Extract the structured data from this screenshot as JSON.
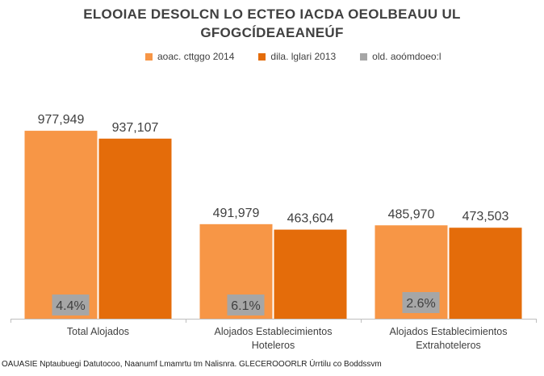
{
  "chart_data": {
    "type": "bar",
    "title": "ELOOIAE DESOLCN LO ECTEO IACDA OEOLBEAUU UL GFOGCÍDEAEANEÚF",
    "categories": [
      "Total Alojados",
      "Alojados Establecimientos Hoteleros",
      "Alojados Establecimientos Extrahoteleros"
    ],
    "category_lines": [
      [
        "Total Alojados"
      ],
      [
        "Alojados Establecimientos",
        "Hoteleros"
      ],
      [
        "Alojados Establecimientos",
        "Extrahoteleros"
      ]
    ],
    "series": [
      {
        "name": "aoac. cttggo 2014",
        "color": "#F79646",
        "values": [
          977949,
          491979,
          485970
        ],
        "labels": [
          "977,949",
          "491,979",
          "485,970"
        ]
      },
      {
        "name": "dila. lglari 2013",
        "color": "#E46C0A",
        "values": [
          937107,
          463604,
          473503
        ],
        "labels": [
          "937,107",
          "463,604",
          "473,503"
        ]
      },
      {
        "name": "old. aoómdoeo:l",
        "color": "#A6A6A6",
        "values": [
          4.4,
          6.1,
          2.6
        ],
        "labels": [
          "4.4%",
          "6.1%",
          "2.6%"
        ]
      }
    ],
    "ylim": [
      0,
      1100000
    ],
    "grid": false,
    "legend_position": "top"
  },
  "source_note": "OAUASIE Nptaubuegi Datutocoo, Naanumf Lmamrtu tm Nalisnra. GLECEROOORLR Úrrtilu co Boddssvm"
}
